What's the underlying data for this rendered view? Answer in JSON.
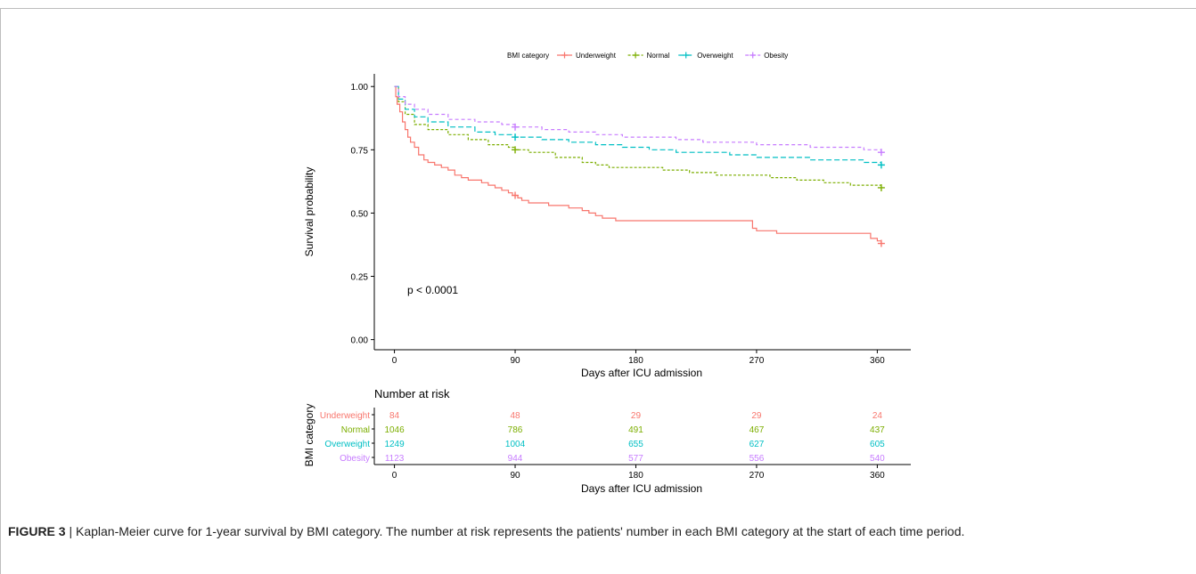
{
  "chart_data": [
    {
      "type": "line",
      "subtype": "kaplan-meier",
      "legend_title": "BMI category",
      "legend_position": "top",
      "xlabel": "Days after ICU admission",
      "ylabel": "Survival probability",
      "xlim": [
        -15,
        385
      ],
      "ylim": [
        -0.04,
        1.05
      ],
      "xticks": [
        "0",
        "90",
        "180",
        "270",
        "360"
      ],
      "yticks": [
        "0.00",
        "0.25",
        "0.50",
        "0.75",
        "1.00"
      ],
      "annotation": "p < 0.0001",
      "series": [
        {
          "name": "Underweight",
          "color": "#F8766D",
          "dash": "",
          "marker_symbol": "+",
          "points": [
            [
              0,
              1.0
            ],
            [
              1,
              0.96
            ],
            [
              2,
              0.93
            ],
            [
              4,
              0.9
            ],
            [
              6,
              0.86
            ],
            [
              8,
              0.83
            ],
            [
              10,
              0.8
            ],
            [
              12,
              0.78
            ],
            [
              15,
              0.76
            ],
            [
              18,
              0.73
            ],
            [
              22,
              0.71
            ],
            [
              25,
              0.7
            ],
            [
              30,
              0.69
            ],
            [
              35,
              0.68
            ],
            [
              40,
              0.67
            ],
            [
              45,
              0.65
            ],
            [
              50,
              0.64
            ],
            [
              55,
              0.63
            ],
            [
              65,
              0.62
            ],
            [
              70,
              0.61
            ],
            [
              75,
              0.6
            ],
            [
              80,
              0.59
            ],
            [
              85,
              0.58
            ],
            [
              88,
              0.57
            ],
            [
              92,
              0.56
            ],
            [
              95,
              0.55
            ],
            [
              100,
              0.54
            ],
            [
              115,
              0.53
            ],
            [
              130,
              0.52
            ],
            [
              140,
              0.51
            ],
            [
              145,
              0.5
            ],
            [
              150,
              0.49
            ],
            [
              155,
              0.48
            ],
            [
              165,
              0.47
            ],
            [
              200,
              0.47
            ],
            [
              265,
              0.47
            ],
            [
              267,
              0.44
            ],
            [
              270,
              0.43
            ],
            [
              285,
              0.42
            ],
            [
              350,
              0.42
            ],
            [
              355,
              0.4
            ],
            [
              360,
              0.39
            ],
            [
              363,
              0.38
            ]
          ],
          "censor": [
            [
              90,
              0.57
            ],
            [
              363,
              0.38
            ]
          ]
        },
        {
          "name": "Normal",
          "color": "#7CAE00",
          "dash": "3,2",
          "marker_symbol": "+",
          "points": [
            [
              0,
              1.0
            ],
            [
              3,
              0.94
            ],
            [
              8,
              0.89
            ],
            [
              15,
              0.85
            ],
            [
              25,
              0.83
            ],
            [
              40,
              0.81
            ],
            [
              55,
              0.79
            ],
            [
              70,
              0.77
            ],
            [
              85,
              0.76
            ],
            [
              90,
              0.75
            ],
            [
              100,
              0.74
            ],
            [
              120,
              0.72
            ],
            [
              140,
              0.7
            ],
            [
              150,
              0.69
            ],
            [
              160,
              0.68
            ],
            [
              180,
              0.68
            ],
            [
              200,
              0.67
            ],
            [
              220,
              0.66
            ],
            [
              240,
              0.65
            ],
            [
              260,
              0.65
            ],
            [
              280,
              0.64
            ],
            [
              300,
              0.63
            ],
            [
              320,
              0.62
            ],
            [
              340,
              0.61
            ],
            [
              363,
              0.6
            ]
          ],
          "censor": [
            [
              90,
              0.75
            ],
            [
              363,
              0.6
            ]
          ]
        },
        {
          "name": "Overweight",
          "color": "#00BFC4",
          "dash": "6,3",
          "marker_symbol": "+",
          "points": [
            [
              0,
              1.0
            ],
            [
              3,
              0.95
            ],
            [
              8,
              0.91
            ],
            [
              15,
              0.88
            ],
            [
              25,
              0.86
            ],
            [
              40,
              0.84
            ],
            [
              60,
              0.82
            ],
            [
              75,
              0.81
            ],
            [
              90,
              0.8
            ],
            [
              110,
              0.79
            ],
            [
              130,
              0.78
            ],
            [
              150,
              0.77
            ],
            [
              170,
              0.76
            ],
            [
              190,
              0.75
            ],
            [
              210,
              0.74
            ],
            [
              230,
              0.74
            ],
            [
              250,
              0.73
            ],
            [
              270,
              0.72
            ],
            [
              290,
              0.72
            ],
            [
              310,
              0.71
            ],
            [
              330,
              0.71
            ],
            [
              350,
              0.7
            ],
            [
              363,
              0.69
            ]
          ],
          "censor": [
            [
              90,
              0.8
            ],
            [
              363,
              0.69
            ]
          ]
        },
        {
          "name": "Obesity",
          "color": "#C77CFF",
          "dash": "4,3",
          "marker_symbol": "+",
          "points": [
            [
              0,
              1.0
            ],
            [
              3,
              0.96
            ],
            [
              8,
              0.93
            ],
            [
              15,
              0.91
            ],
            [
              25,
              0.89
            ],
            [
              40,
              0.87
            ],
            [
              60,
              0.86
            ],
            [
              80,
              0.85
            ],
            [
              90,
              0.84
            ],
            [
              110,
              0.83
            ],
            [
              130,
              0.82
            ],
            [
              150,
              0.81
            ],
            [
              170,
              0.8
            ],
            [
              190,
              0.8
            ],
            [
              210,
              0.79
            ],
            [
              230,
              0.78
            ],
            [
              250,
              0.78
            ],
            [
              270,
              0.77
            ],
            [
              290,
              0.77
            ],
            [
              310,
              0.76
            ],
            [
              330,
              0.76
            ],
            [
              350,
              0.75
            ],
            [
              363,
              0.74
            ]
          ],
          "censor": [
            [
              90,
              0.84
            ],
            [
              363,
              0.74
            ]
          ]
        }
      ]
    },
    {
      "type": "table",
      "title": "Number at risk",
      "ylabel": "BMI category",
      "xlabel": "Days after ICU admission",
      "xlim": [
        -15,
        385
      ],
      "time_points": [
        0,
        90,
        180,
        270,
        360
      ],
      "xticks": [
        "0",
        "90",
        "180",
        "270",
        "360"
      ],
      "rows": [
        {
          "label": "Underweight",
          "color": "#F8766D",
          "values": [
            "84",
            "48",
            "29",
            "29",
            "24"
          ]
        },
        {
          "label": "Normal",
          "color": "#7CAE00",
          "values": [
            "1046",
            "786",
            "491",
            "467",
            "437"
          ]
        },
        {
          "label": "Overweight",
          "color": "#00BFC4",
          "values": [
            "1249",
            "1004",
            "655",
            "627",
            "605"
          ]
        },
        {
          "label": "Obesity",
          "color": "#C77CFF",
          "values": [
            "1123",
            "944",
            "577",
            "556",
            "540"
          ]
        }
      ]
    }
  ],
  "caption": {
    "label": "FIGURE 3",
    "separator": " | ",
    "text": "Kaplan-Meier curve for 1-year survival by BMI category. The number at risk represents the patients' number in each BMI category at the start of each time period."
  }
}
